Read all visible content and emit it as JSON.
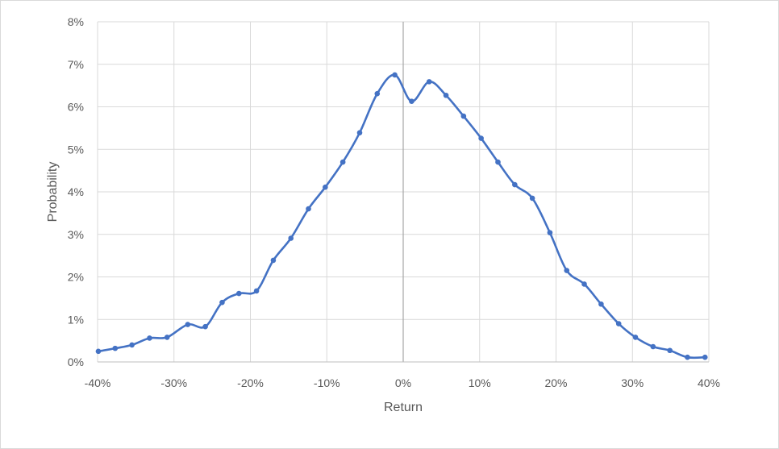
{
  "chart_data": {
    "type": "line",
    "title": "",
    "xlabel": "Return",
    "ylabel": "Probability",
    "xlim": [
      -40,
      40
    ],
    "ylim": [
      0,
      8
    ],
    "x_ticks": [
      -40,
      -30,
      -20,
      -10,
      0,
      10,
      20,
      30,
      40
    ],
    "x_tick_labels": [
      "-40%",
      "-30%",
      "-20%",
      "-10%",
      "0%",
      "10%",
      "20%",
      "30%",
      "40%"
    ],
    "y_ticks": [
      0,
      1,
      2,
      3,
      4,
      5,
      6,
      7,
      8
    ],
    "y_tick_labels": [
      "0%",
      "1%",
      "2%",
      "3%",
      "4%",
      "5%",
      "6%",
      "7%",
      "8%"
    ],
    "grid": true,
    "legend": "none",
    "series": [
      {
        "color": "#4472c4",
        "marker": "circle",
        "smooth": true,
        "x": [
          -39.9,
          -37.7,
          -35.5,
          -33.2,
          -30.9,
          -28.2,
          -25.9,
          -23.7,
          -21.5,
          -19.2,
          -17.0,
          -14.7,
          -12.4,
          -10.2,
          -7.9,
          -5.7,
          -3.4,
          -1.1,
          1.1,
          3.4,
          5.6,
          7.9,
          10.2,
          12.4,
          14.6,
          16.9,
          19.2,
          21.4,
          23.7,
          25.9,
          28.2,
          30.4,
          32.7,
          34.9,
          37.2,
          39.5
        ],
        "y": [
          0.25,
          0.32,
          0.4,
          0.56,
          0.58,
          0.88,
          0.83,
          1.4,
          1.61,
          1.67,
          2.39,
          2.91,
          3.6,
          4.11,
          4.7,
          5.39,
          6.31,
          6.75,
          6.13,
          6.59,
          6.27,
          5.78,
          5.26,
          4.7,
          4.17,
          3.85,
          3.04,
          2.15,
          1.83,
          1.36,
          0.9,
          0.58,
          0.36,
          0.27,
          0.11,
          0.11
        ]
      }
    ]
  }
}
